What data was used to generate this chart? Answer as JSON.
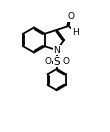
{
  "bg_color": "#ffffff",
  "line_color": "#000000",
  "line_width": 1.3,
  "font_size": 6.5,
  "figsize": [
    1.1,
    1.32
  ],
  "dpi": 100,
  "xlim": [
    0.0,
    11.0
  ],
  "ylim": [
    0.0,
    13.2
  ]
}
